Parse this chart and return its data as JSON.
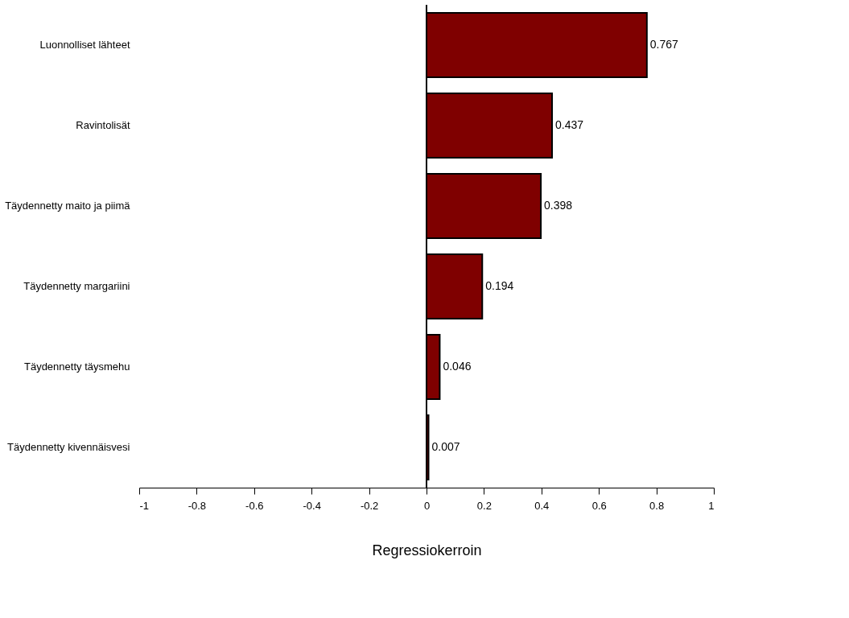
{
  "chart_data": {
    "type": "bar",
    "orientation": "horizontal",
    "categories": [
      "Luonnolliset lähteet",
      "Ravintolisät",
      "Täydennetty maito ja piimä",
      "Täydennetty margariini",
      "Täydennetty täysmehu",
      "Täydennetty kivennäisvesi"
    ],
    "values": [
      0.767,
      0.437,
      0.398,
      0.194,
      0.046,
      0.007
    ],
    "color": "#7f0000",
    "xlim": [
      -1,
      1
    ],
    "xticks": [
      -1,
      -0.8,
      -0.6,
      -0.4,
      -0.2,
      0,
      0.2,
      0.4,
      0.6,
      0.8,
      1
    ],
    "xlabel": "Regressiokerroin",
    "data_labels": true,
    "grid": false,
    "ref_lines": [
      {
        "axis": "x",
        "value": 0,
        "color": "#000000"
      }
    ]
  }
}
